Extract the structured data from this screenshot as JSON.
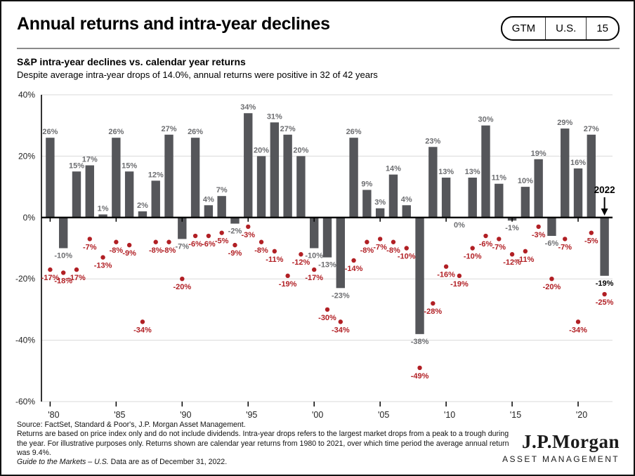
{
  "header": {
    "title": "Annual returns and intra-year declines",
    "badge": {
      "gtm": "GTM",
      "region": "U.S.",
      "page": "15"
    }
  },
  "chart_header": {
    "title": "S&P intra-year declines vs. calendar year returns",
    "subtitle": "Despite average intra-year drops of 14.0%, annual returns were positive in 32 of 42 years"
  },
  "chart_data": {
    "type": "bar",
    "title": "S&P intra-year declines vs. calendar year returns",
    "x": [
      1980,
      1981,
      1982,
      1983,
      1984,
      1985,
      1986,
      1987,
      1988,
      1989,
      1990,
      1991,
      1992,
      1993,
      1994,
      1995,
      1996,
      1997,
      1998,
      1999,
      2000,
      2001,
      2002,
      2003,
      2004,
      2005,
      2006,
      2007,
      2008,
      2009,
      2010,
      2011,
      2012,
      2013,
      2014,
      2015,
      2016,
      2017,
      2018,
      2019,
      2020,
      2021,
      2022
    ],
    "series": [
      {
        "name": "Calendar year returns",
        "type": "bar",
        "color": "#55565A",
        "values": [
          26,
          -10,
          15,
          17,
          1,
          26,
          15,
          2,
          12,
          27,
          -7,
          26,
          4,
          7,
          -2,
          34,
          20,
          31,
          27,
          20,
          -10,
          -13,
          -23,
          26,
          9,
          3,
          14,
          4,
          -38,
          23,
          13,
          0,
          13,
          30,
          11,
          -1,
          10,
          19,
          -6,
          29,
          16,
          27,
          -19
        ]
      },
      {
        "name": "Intra-year declines",
        "type": "scatter",
        "color": "#b11f24",
        "values": [
          -17,
          -18,
          -17,
          -7,
          -13,
          -8,
          -9,
          -34,
          -8,
          -8,
          -20,
          -6,
          -6,
          -5,
          -9,
          -3,
          -8,
          -11,
          -19,
          -12,
          -17,
          -30,
          -34,
          -14,
          -8,
          -7,
          -8,
          -10,
          -49,
          -28,
          -16,
          -19,
          -10,
          -6,
          -7,
          -12,
          -11,
          -3,
          -20,
          -7,
          -34,
          -5,
          -25
        ]
      }
    ],
    "ylim": [
      -60,
      40
    ],
    "yticks": [
      40,
      20,
      0,
      -20,
      -40,
      -60
    ],
    "xtick_step_years": 5,
    "grid": "horizontal-light",
    "highlight": {
      "year": 2022,
      "label": "2022"
    }
  },
  "footer": {
    "source": "Source: FactSet, Standard & Poor's, J.P. Morgan Asset Management.",
    "disclosure": "Returns are based on price index only and do not include dividends. Intra-year drops refers to the largest market drops from a peak to a trough during the year. For illustrative purposes only. Returns shown are calendar year returns from 1980 to 2021, over which time period the average annual return was 9.4%.",
    "gtm_italic": "Guide to the Markets – U.S.",
    "asof": "Data are as of December 31, 2022."
  },
  "logo": {
    "name": "J.P.Morgan",
    "subtitle": "ASSET MANAGEMENT"
  }
}
